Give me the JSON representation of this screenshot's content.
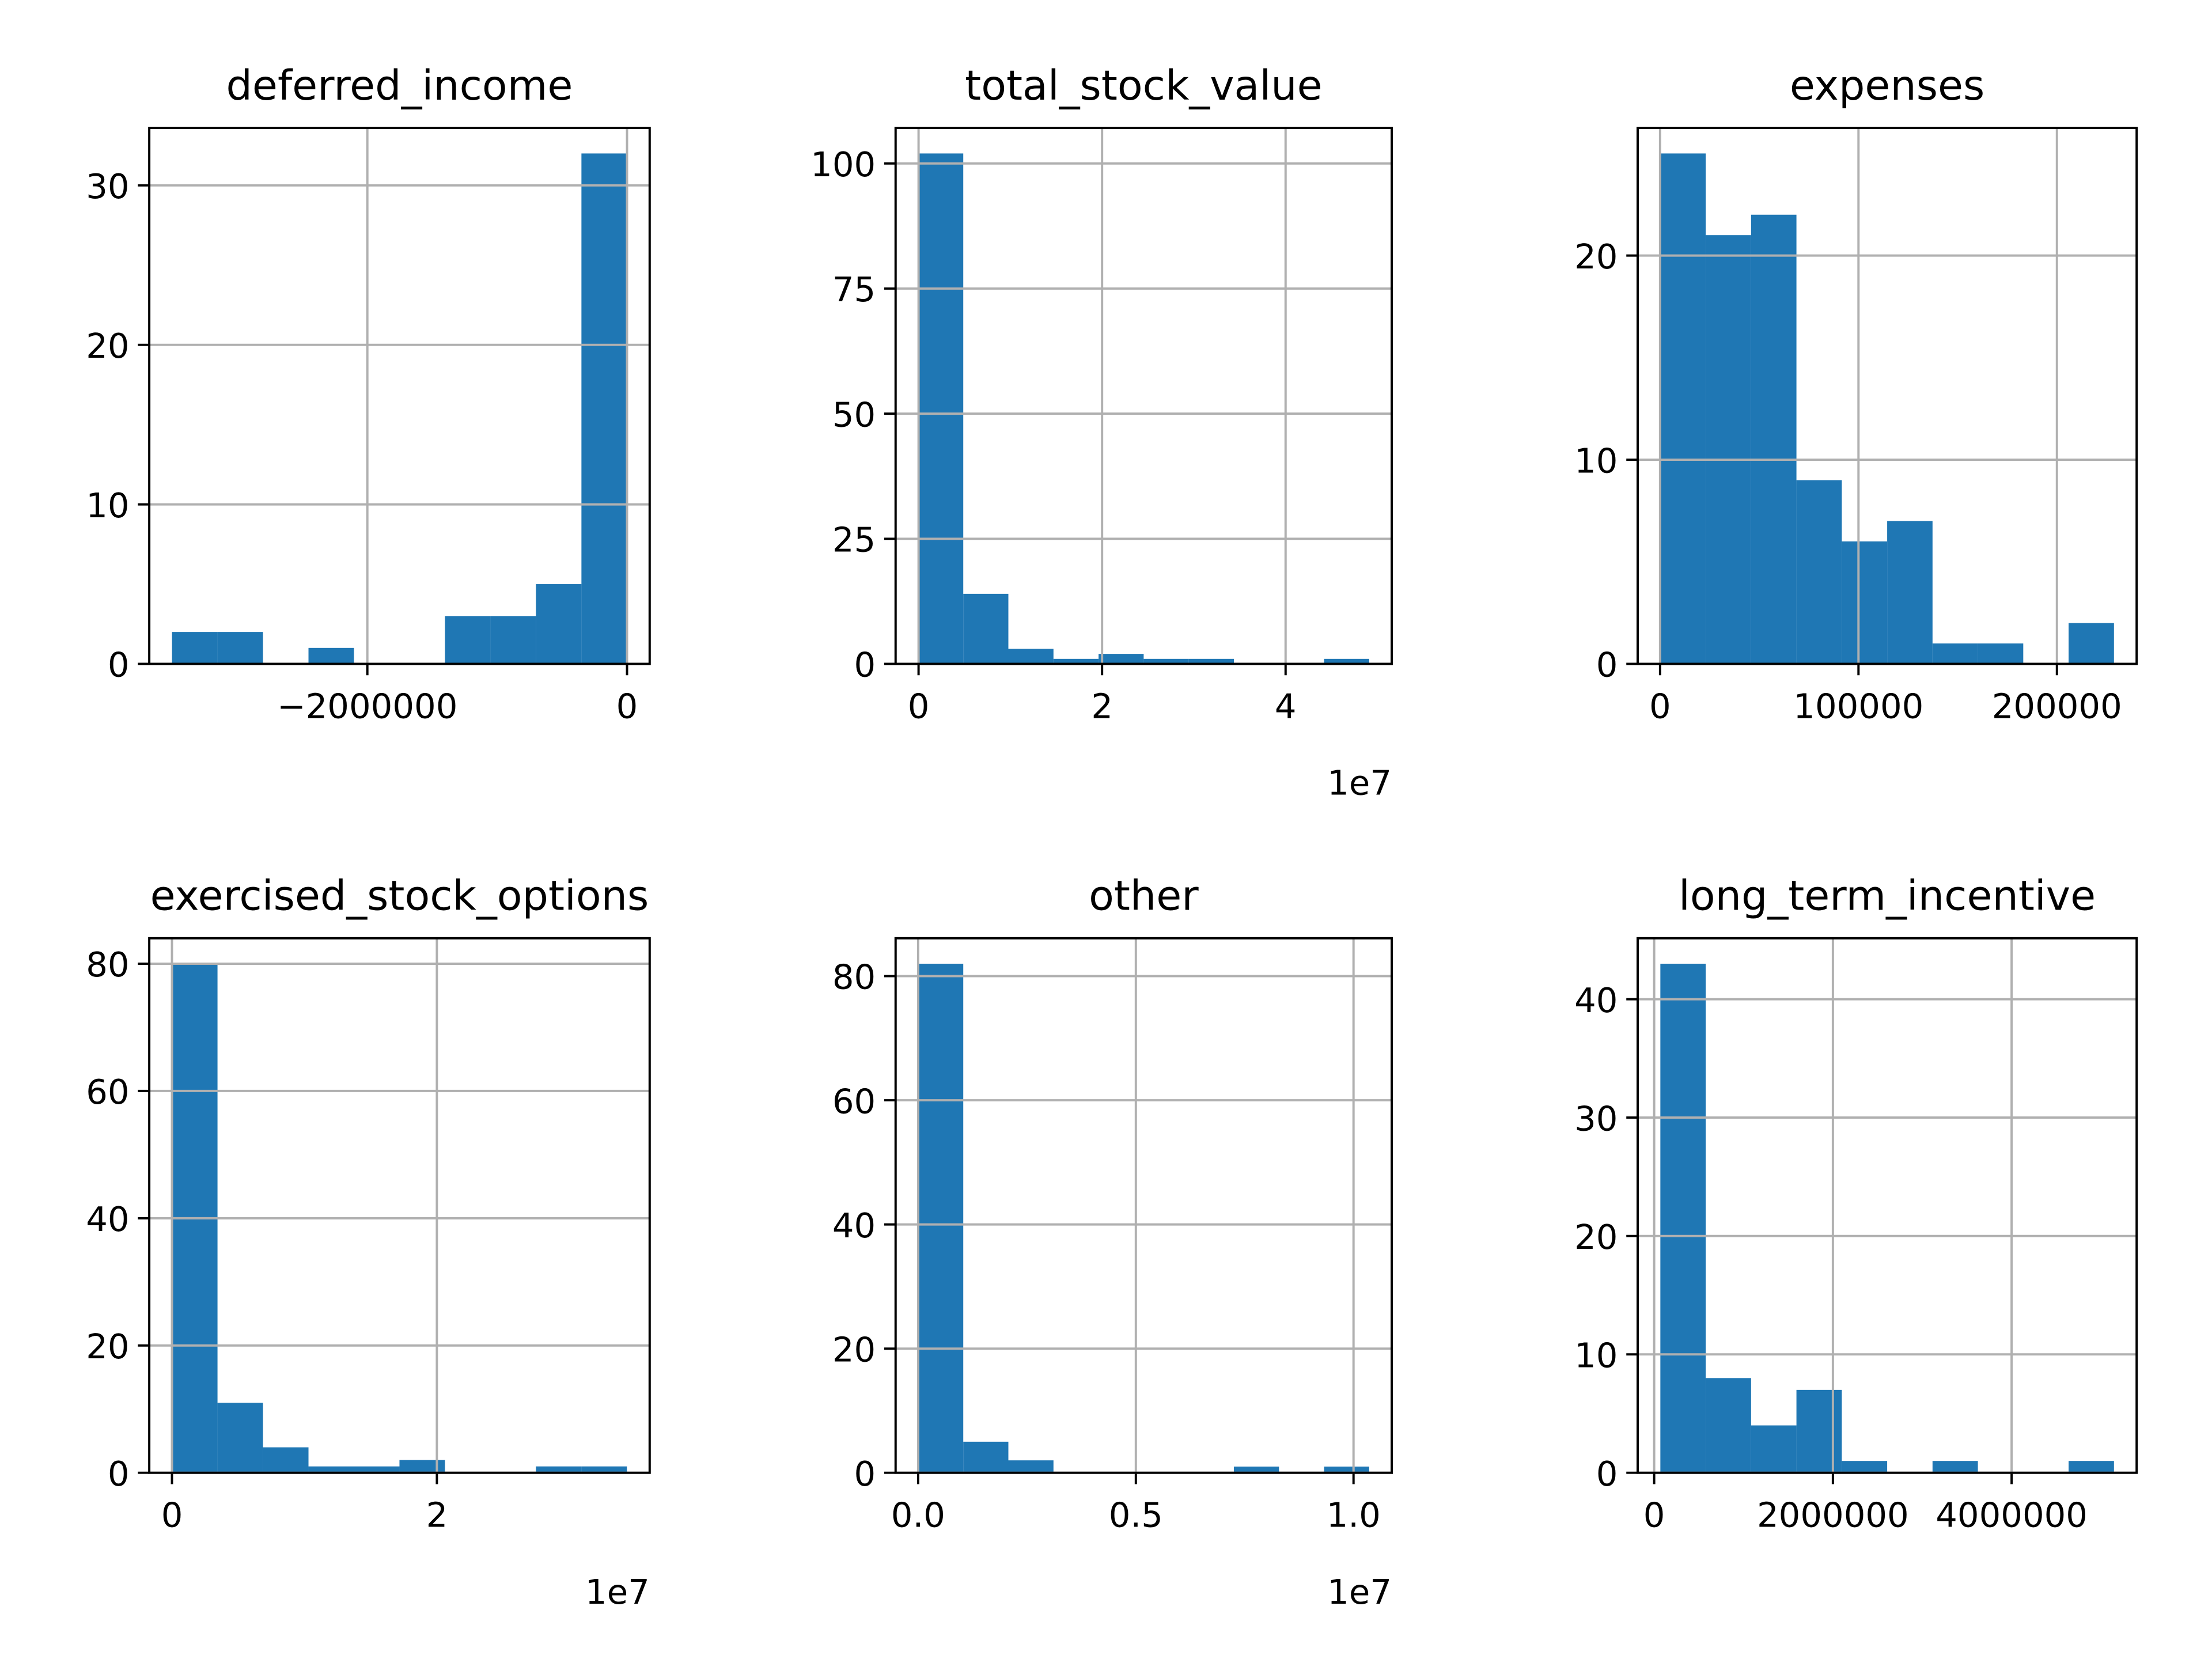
{
  "chart_data": [
    {
      "type": "histogram",
      "title": "deferred_income",
      "color": "#1f77b4",
      "grid": true,
      "bins": [
        -3504386,
        -3154030.7,
        -2803675.4,
        -2453320.1,
        -2102964.8,
        -1752609.5,
        -1402254.2,
        -1051898.9,
        -701543.6,
        -351188.3,
        -833
      ],
      "values": [
        2,
        2,
        0,
        1,
        0,
        0,
        3,
        3,
        5,
        32
      ],
      "xlim": [
        -3679564,
        174345
      ],
      "ylim": [
        0,
        33.6
      ],
      "xticks": [
        {
          "value": -2000000,
          "label": "−2000000"
        },
        0
      ],
      "yticks": [
        0,
        10,
        20,
        30
      ]
    },
    {
      "type": "histogram",
      "title": "total_stock_value",
      "color": "#1f77b4",
      "grid": true,
      "bins": [
        -44093,
        4871324,
        9786741,
        14702158,
        19617575,
        24532992,
        29448410,
        34363827,
        39279244,
        44194661,
        49110078
      ],
      "values": [
        102,
        14,
        3,
        1,
        2,
        1,
        1,
        0,
        0,
        1
      ],
      "xlim": [
        -2501802,
        51567787
      ],
      "ylim": [
        0,
        107.1
      ],
      "xticks": [
        0,
        {
          "value": 20000000,
          "label": "2"
        },
        {
          "value": 40000000,
          "label": "4"
        }
      ],
      "yticks": [
        0,
        25,
        50,
        75,
        100
      ],
      "x_offset_label": "1e7"
    },
    {
      "type": "histogram",
      "title": "expenses",
      "color": "#1f77b4",
      "grid": true,
      "bins": [
        148,
        23009.5,
        45871,
        68732.5,
        91594,
        114455.5,
        137317,
        160178.5,
        183040,
        205901.5,
        228763
      ],
      "values": [
        25,
        21,
        22,
        9,
        6,
        7,
        1,
        1,
        0,
        2
      ],
      "xlim": [
        -11283,
        240194
      ],
      "ylim": [
        0,
        26.25
      ],
      "xticks": [
        0,
        100000,
        200000
      ],
      "yticks": [
        0,
        10,
        20
      ]
    },
    {
      "type": "histogram",
      "title": "exercised_stock_options",
      "color": "#1f77b4",
      "grid": true,
      "bins": [
        3285,
        3437795,
        6872305,
        10306815,
        13741325,
        17175835,
        20610345,
        24044855,
        27479364,
        30913874,
        34348384
      ],
      "values": [
        80,
        11,
        4,
        1,
        1,
        2,
        0,
        0,
        1,
        1
      ],
      "xlim": [
        -1713970,
        36065639
      ],
      "ylim": [
        0,
        84
      ],
      "xticks": [
        0,
        {
          "value": 20000000,
          "label": "2"
        }
      ],
      "yticks": [
        0,
        20,
        40,
        60,
        80
      ],
      "x_offset_label": "1e7"
    },
    {
      "type": "histogram",
      "title": "other",
      "color": "#1f77b4",
      "grid": true,
      "bins": [
        2,
        1035975,
        2071948,
        3107920,
        4143893,
        5179866,
        6215839,
        7251811,
        8287784,
        9323756,
        10359729
      ],
      "values": [
        82,
        5,
        2,
        0,
        0,
        0,
        0,
        1,
        0,
        1
      ],
      "xlim": [
        -517984,
        10877715
      ],
      "ylim": [
        0,
        86.1
      ],
      "xticks": [
        {
          "value": 0,
          "label": "0.0"
        },
        {
          "value": 5000000,
          "label": "0.5"
        },
        {
          "value": 10000000,
          "label": "1.0"
        }
      ],
      "yticks": [
        0,
        20,
        40,
        60,
        80
      ],
      "x_offset_label": "1e7"
    },
    {
      "type": "histogram",
      "title": "long_term_incentive",
      "color": "#1f77b4",
      "grid": true,
      "bins": [
        69223,
        576844,
        1084465,
        1592086,
        2099707,
        2607328,
        3114950,
        3622571,
        4130192,
        4637813,
        5145434
      ],
      "values": [
        43,
        8,
        4,
        7,
        1,
        0,
        1,
        0,
        0,
        1
      ],
      "xlim": [
        -184588,
        5399245
      ],
      "ylim": [
        0,
        45.15
      ],
      "xticks": [
        0,
        2000000,
        4000000
      ],
      "yticks": [
        0,
        10,
        20,
        30,
        40
      ]
    }
  ]
}
